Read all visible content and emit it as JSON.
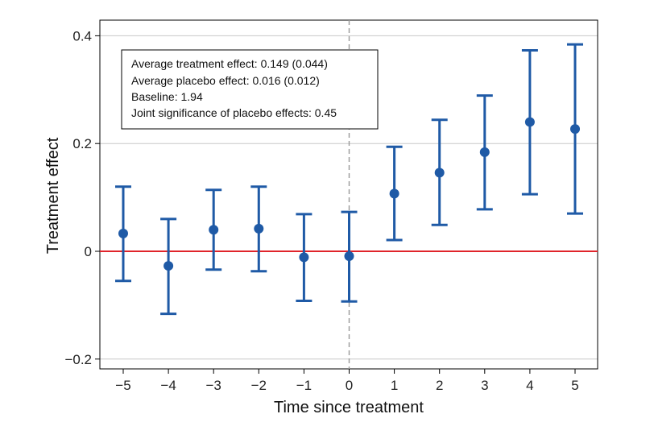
{
  "chart_data": {
    "type": "scatter",
    "title": "",
    "xlabel": "Time since treatment",
    "ylabel": "Treatment effect",
    "x": [
      -5,
      -4,
      -3,
      -2,
      -1,
      0,
      1,
      2,
      3,
      4,
      5
    ],
    "x_tick_labels": [
      "−5",
      "−4",
      "−3",
      "−2",
      "−1",
      "0",
      "1",
      "2",
      "3",
      "4",
      "5"
    ],
    "y_ticks": [
      -0.2,
      0,
      0.2,
      0.4
    ],
    "y_tick_labels": [
      "−0.2",
      "0",
      "0.2",
      "0.4"
    ],
    "xlim": [
      -5.5,
      5.5
    ],
    "ylim": [
      -0.22,
      0.42
    ],
    "grid": "horizontal",
    "series": [
      {
        "values": [
          0.033,
          -0.027,
          0.04,
          0.042,
          -0.011,
          -0.009,
          0.107,
          0.146,
          0.184,
          0.24,
          0.227
        ],
        "ci_low": [
          -0.055,
          -0.116,
          -0.034,
          -0.037,
          -0.092,
          -0.093,
          0.021,
          0.049,
          0.078,
          0.106,
          0.07
        ],
        "ci_high": [
          0.12,
          0.06,
          0.114,
          0.12,
          0.069,
          0.073,
          0.194,
          0.244,
          0.289,
          0.373,
          0.384
        ],
        "color": "#1f5aa6"
      }
    ],
    "reference_line": {
      "y": 0,
      "color": "#e0242b"
    },
    "treatment_line": {
      "x": 0,
      "style": "dashed",
      "color": "#9a9a9a"
    },
    "annotation": [
      "Average treatment effect: 0.149 (0.044)",
      "Average placebo effect: 0.016 (0.012)",
      "Baseline: 1.94",
      "Joint significance of placebo effects: 0.45"
    ]
  }
}
